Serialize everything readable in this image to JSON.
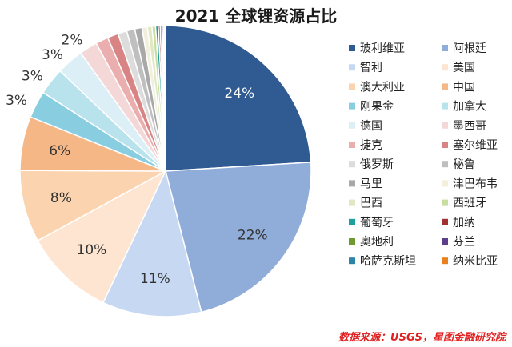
{
  "chart_data": {
    "type": "pie",
    "title": "2021 全球锂资源占比",
    "source": "数据来源：USGS，星图金融研究院",
    "unit": "%",
    "slices": [
      {
        "name": "玻利维亚",
        "value": 24,
        "label": "24%",
        "color": "#2f5a92"
      },
      {
        "name": "阿根廷",
        "value": 22,
        "label": "22%",
        "color": "#8fadd8"
      },
      {
        "name": "智利",
        "value": 11,
        "label": "11%",
        "color": "#c6d8f2"
      },
      {
        "name": "美国",
        "value": 10,
        "label": "10%",
        "color": "#fde5d2"
      },
      {
        "name": "澳大利亚",
        "value": 8,
        "label": "8%",
        "color": "#fbd3ae"
      },
      {
        "name": "中国",
        "value": 6,
        "label": "6%",
        "color": "#f6b787"
      },
      {
        "name": "刚果金",
        "value": 3,
        "label": "3%",
        "color": "#88cde0"
      },
      {
        "name": "加拿大",
        "value": 3,
        "label": "3%",
        "color": "#b8e2ec"
      },
      {
        "name": "德国",
        "value": 3,
        "label": "3%",
        "color": "#dceef6"
      },
      {
        "name": "墨西哥",
        "value": 2,
        "label": "2%",
        "color": "#f4d8d8"
      },
      {
        "name": "捷克",
        "value": 1.4,
        "label": "",
        "color": "#ebaeae"
      },
      {
        "name": "塞尔维亚",
        "value": 1.2,
        "label": "",
        "color": "#d98484"
      },
      {
        "name": "俄罗斯",
        "value": 1.0,
        "label": "",
        "color": "#dcdcdc"
      },
      {
        "name": "秘鲁",
        "value": 0.9,
        "label": "",
        "color": "#bfbfbf"
      },
      {
        "name": "马里",
        "value": 0.8,
        "label": "",
        "color": "#a8a8a8"
      },
      {
        "name": "津巴布韦",
        "value": 0.6,
        "label": "",
        "color": "#f2f0dc"
      },
      {
        "name": "巴西",
        "value": 0.5,
        "label": "",
        "color": "#dfe8c3"
      },
      {
        "name": "西班牙",
        "value": 0.4,
        "label": "",
        "color": "#c7dea0"
      },
      {
        "name": "葡萄牙",
        "value": 0.3,
        "label": "",
        "color": "#1f9ea0"
      },
      {
        "name": "加纳",
        "value": 0.2,
        "label": "",
        "color": "#a33030"
      },
      {
        "name": "奥地利",
        "value": 0.2,
        "label": "",
        "color": "#6f9a32"
      },
      {
        "name": "芬兰",
        "value": 0.15,
        "label": "",
        "color": "#5b3f8c"
      },
      {
        "name": "哈萨克斯坦",
        "value": 0.15,
        "label": "",
        "color": "#2a85a8"
      },
      {
        "name": "纳米比亚",
        "value": 0.1,
        "label": "",
        "color": "#e8801e"
      }
    ]
  }
}
